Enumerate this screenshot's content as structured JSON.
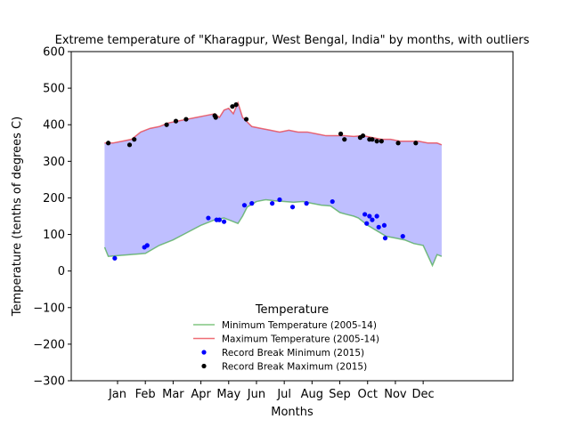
{
  "chart_data": {
    "type": "line",
    "title": "Extreme temperature of \"Kharagpur, West Bengal, India\" by months, with outliers",
    "xlabel": "Months",
    "ylabel": "Temperature (tenths of degrees C)",
    "ylim": [
      -300,
      600
    ],
    "yticks": [
      -300,
      -200,
      -100,
      0,
      100,
      200,
      300,
      400,
      500,
      600
    ],
    "xlim": [
      -35,
      442
    ],
    "x_units": "day of year",
    "month_ticks": [
      {
        "label": "Jan",
        "day": 15
      },
      {
        "label": "Feb",
        "day": 45
      },
      {
        "label": "Mar",
        "day": 75
      },
      {
        "label": "Apr",
        "day": 105
      },
      {
        "label": "May",
        "day": 135
      },
      {
        "label": "Jun",
        "day": 165
      },
      {
        "label": "Jul",
        "day": 195
      },
      {
        "label": "Aug",
        "day": 225
      },
      {
        "label": "Sep",
        "day": 255
      },
      {
        "label": "Oct",
        "day": 285
      },
      {
        "label": "Nov",
        "day": 315
      },
      {
        "label": "Dec",
        "day": 345
      }
    ],
    "fill_between": {
      "color": "#0000ff",
      "alpha": 0.25
    },
    "series": [
      {
        "name": "Minimum Temperature (2005-14)",
        "color": "#2ca02c",
        "alpha": 0.6,
        "x": [
          1,
          5,
          15,
          30,
          45,
          60,
          75,
          90,
          105,
          120,
          130,
          135,
          145,
          150,
          155,
          165,
          175,
          185,
          195,
          205,
          215,
          225,
          235,
          245,
          255,
          262,
          270,
          275,
          285,
          295,
          305,
          315,
          325,
          335,
          345,
          355,
          360,
          365
        ],
        "y": [
          65,
          40,
          42,
          45,
          48,
          70,
          85,
          105,
          125,
          140,
          145,
          140,
          130,
          150,
          175,
          190,
          195,
          192,
          190,
          188,
          190,
          185,
          180,
          178,
          160,
          155,
          150,
          145,
          125,
          110,
          95,
          90,
          85,
          75,
          70,
          15,
          45,
          40
        ]
      },
      {
        "name": "Maximum Temperature (2005-14)",
        "color": "#e8303a",
        "alpha": 0.7,
        "x": [
          1,
          10,
          20,
          30,
          40,
          50,
          60,
          70,
          80,
          90,
          100,
          110,
          120,
          125,
          130,
          135,
          140,
          145,
          150,
          160,
          170,
          180,
          190,
          200,
          210,
          220,
          230,
          240,
          250,
          260,
          270,
          280,
          290,
          300,
          310,
          320,
          330,
          340,
          350,
          360,
          365
        ],
        "y": [
          350,
          350,
          355,
          360,
          380,
          390,
          395,
          405,
          410,
          415,
          420,
          425,
          430,
          420,
          440,
          445,
          430,
          460,
          420,
          395,
          390,
          385,
          380,
          385,
          380,
          380,
          375,
          370,
          370,
          370,
          368,
          370,
          365,
          360,
          360,
          355,
          355,
          355,
          350,
          350,
          345
        ]
      }
    ],
    "scatter": [
      {
        "name": "Record Break Minimum (2015)",
        "color": "#0000ff",
        "x": [
          12,
          44,
          47,
          113,
          122,
          125,
          130,
          152,
          160,
          182,
          190,
          204,
          219,
          247,
          282,
          284,
          287,
          290,
          295,
          297,
          303,
          304,
          323
        ],
        "y": [
          35,
          65,
          70,
          145,
          140,
          140,
          135,
          180,
          185,
          185,
          195,
          175,
          185,
          190,
          155,
          130,
          150,
          140,
          150,
          120,
          125,
          90,
          95
        ]
      },
      {
        "name": "Record Break Maximum (2015)",
        "color": "#000000",
        "x": [
          5,
          28,
          33,
          68,
          78,
          89,
          120,
          121,
          139,
          143,
          154,
          256,
          260,
          277,
          280,
          287,
          290,
          295,
          300,
          318,
          337
        ],
        "y": [
          350,
          345,
          360,
          400,
          410,
          415,
          425,
          420,
          450,
          455,
          415,
          375,
          360,
          365,
          370,
          360,
          360,
          355,
          355,
          350,
          350
        ]
      }
    ],
    "legend": {
      "title": "Temperature",
      "placement": "lower-center",
      "frameon": false
    }
  }
}
